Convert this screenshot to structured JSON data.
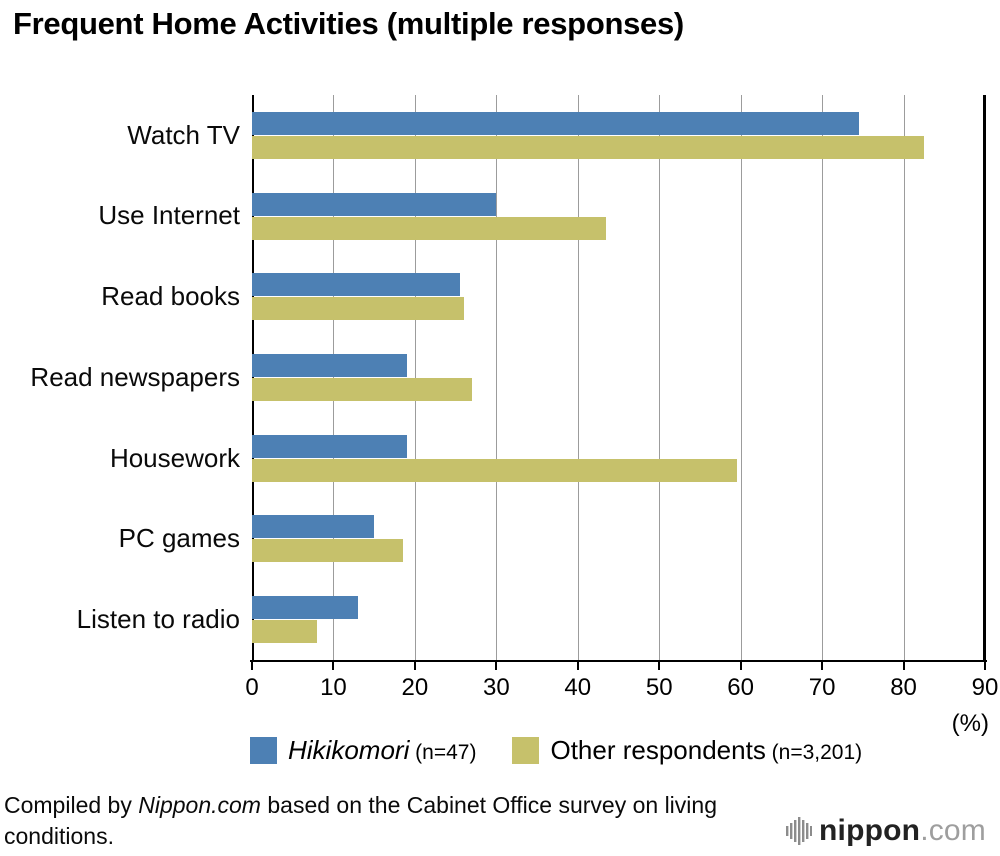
{
  "title": "Frequent Home Activities (multiple responses)",
  "chart_data": {
    "type": "bar",
    "orientation": "horizontal",
    "title": "Frequent Home Activities (multiple responses)",
    "categories": [
      "Watch TV",
      "Use Internet",
      "Read books",
      "Read newspapers",
      "Housework",
      "PC games",
      "Listen to radio"
    ],
    "series": [
      {
        "name": "Hikikomori (n=47)",
        "color": "#4d80b4",
        "values": [
          74.5,
          30,
          25.5,
          19,
          19,
          15,
          13
        ]
      },
      {
        "name": "Other respondents (n=3,201)",
        "color": "#c6c16b",
        "values": [
          82.5,
          43.5,
          26,
          27,
          59.5,
          18.5,
          8
        ]
      }
    ],
    "xlim": [
      0,
      90
    ],
    "xticks": [
      0,
      10,
      20,
      30,
      40,
      50,
      60,
      70,
      80,
      90
    ],
    "x_unit_label": "(%)",
    "grid": true,
    "legend_position": "bottom"
  },
  "legend": {
    "items": [
      {
        "name": "Hikikomori",
        "italic": true,
        "suffix": "(n=47)",
        "color": "#4d80b4"
      },
      {
        "name": "Other respondents",
        "italic": false,
        "suffix": "(n=3,201)",
        "color": "#c6c16b"
      }
    ]
  },
  "footer": {
    "caption_prefix": "Compiled by ",
    "caption_source": "Nippon.com",
    "caption_suffix": " based on the Cabinet Office survey on living conditions.",
    "logo_name": "nippon",
    "logo_tld": ".com"
  }
}
